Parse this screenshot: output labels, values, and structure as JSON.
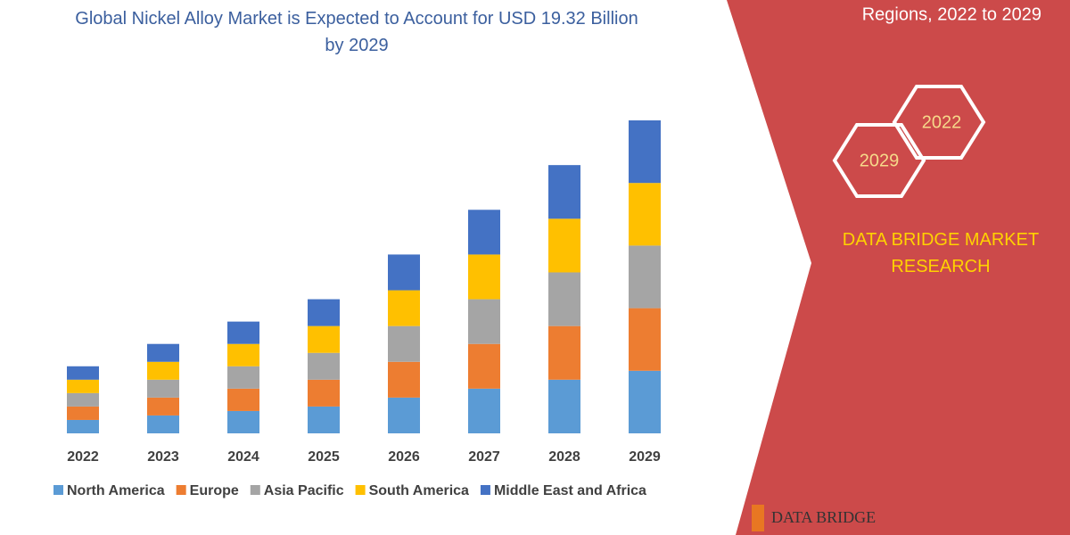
{
  "chart_data": {
    "type": "stacked-bar",
    "title": "Global Nickel Alloy Market is Expected to Account for USD 19.32 Billion by 2029",
    "categories": [
      "2022",
      "2023",
      "2024",
      "2025",
      "2026",
      "2027",
      "2028",
      "2029"
    ],
    "series": [
      {
        "name": "North America",
        "color": "#5b9bd5",
        "values": [
          15,
          20,
          25,
          30,
          40,
          50,
          60,
          70
        ]
      },
      {
        "name": "Europe",
        "color": "#ed7d31",
        "values": [
          15,
          20,
          25,
          30,
          40,
          50,
          60,
          70
        ]
      },
      {
        "name": "Asia Pacific",
        "color": "#a5a5a5",
        "values": [
          15,
          20,
          25,
          30,
          40,
          50,
          60,
          70
        ]
      },
      {
        "name": "South America",
        "color": "#ffc000",
        "values": [
          15,
          20,
          25,
          30,
          40,
          50,
          60,
          70
        ]
      },
      {
        "name": "Middle East and Africa",
        "color": "#4472c4",
        "values": [
          15,
          20,
          25,
          30,
          40,
          50,
          60,
          70
        ]
      }
    ]
  },
  "side_panel": {
    "heading": "Regions, 2022 to 2029",
    "hex_start": "2022",
    "hex_end": "2029",
    "brand": "DATA BRIDGE MARKET RESEARCH",
    "logo": "DATA BRIDGE"
  }
}
